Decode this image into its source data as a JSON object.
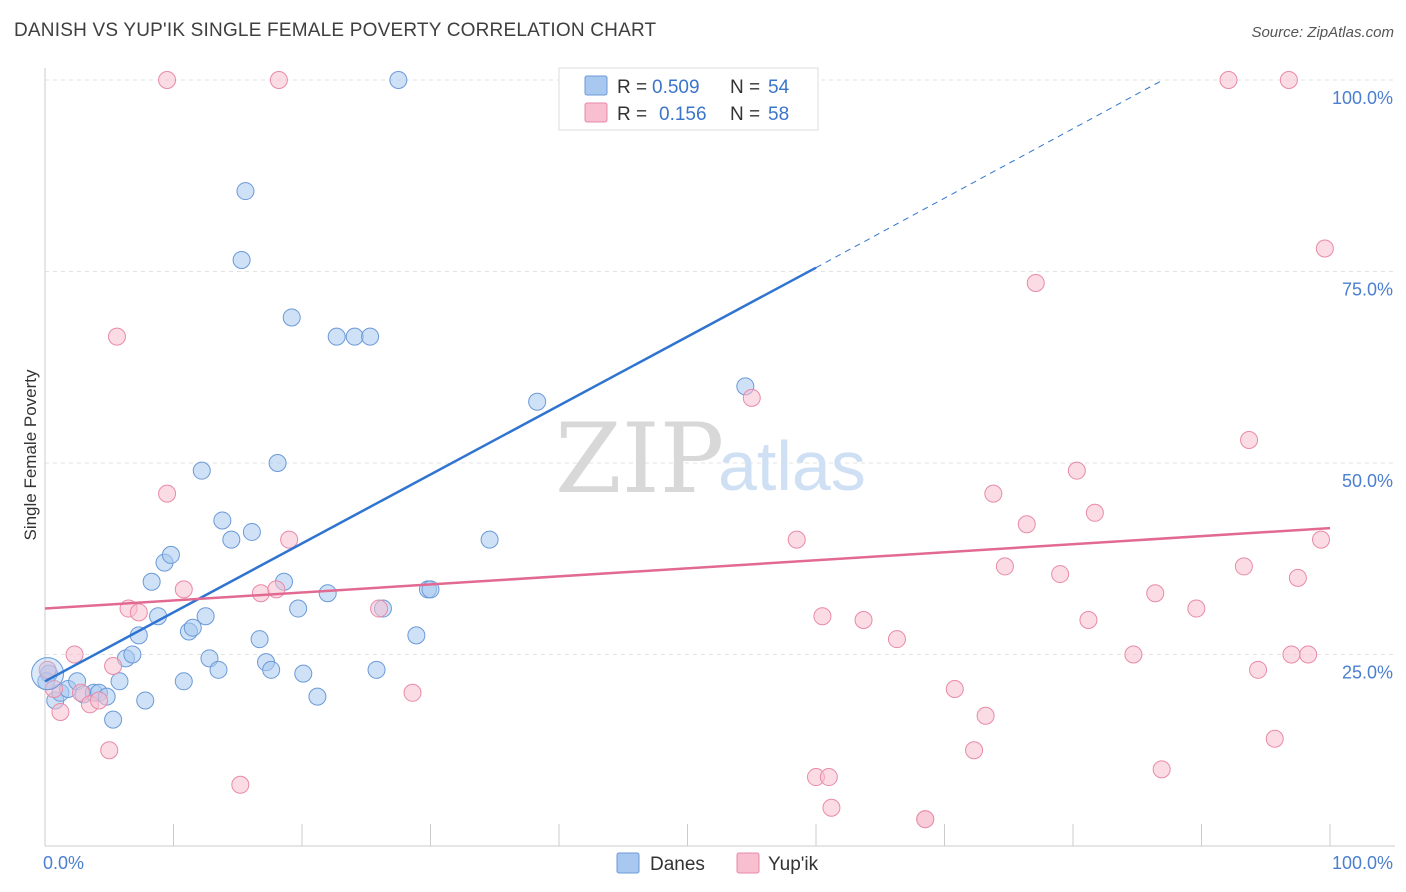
{
  "title": "DANISH VS YUP'IK SINGLE FEMALE POVERTY CORRELATION CHART",
  "source": "Source: ZipAtlas.com",
  "watermark": {
    "zip": "ZIP",
    "atlas": "atlas"
  },
  "legend_top": {
    "rows": [
      {
        "r_label": "R =",
        "r_value": "0.509",
        "n_label": "N =",
        "n_value": "54",
        "color": "#a8c8f0",
        "stroke": "#6b9ad8"
      },
      {
        "r_label": "R =",
        "r_value": "0.156",
        "n_label": "N =",
        "n_value": "58",
        "color": "#f7bfd0",
        "stroke": "#e98aa8"
      }
    ]
  },
  "legend_bottom": [
    {
      "label": "Danes",
      "color": "#a8c8f0",
      "stroke": "#6b9ad8"
    },
    {
      "label": "Yup'ik",
      "color": "#f7bfd0",
      "stroke": "#e98aa8"
    }
  ],
  "chart_data": {
    "type": "scatter",
    "title": "DANISH VS YUP'IK SINGLE FEMALE POVERTY CORRELATION CHART",
    "xlabel": "",
    "ylabel": "Single Female Poverty",
    "xlim": [
      0,
      100
    ],
    "ylim": [
      0,
      100
    ],
    "x_tick_labels": [
      "0.0%",
      "100.0%"
    ],
    "y_tick_values": [
      25,
      50,
      75,
      100
    ],
    "y_tick_labels": [
      "25.0%",
      "50.0%",
      "75.0%",
      "100.0%"
    ],
    "grid": true,
    "legend_position": "top-center",
    "series": [
      {
        "name": "Danes",
        "color": "#a8c8f0",
        "stroke": "#6b9ad8",
        "trend_color": "#2f74d0",
        "trend": {
          "x0": 0,
          "y0": 21.5,
          "x1": 60,
          "y1": 75.5,
          "dashed_to_x": 87,
          "dashed_to_y": 100
        },
        "points": [
          [
            0.3,
            22.5
          ],
          [
            0.8,
            19
          ],
          [
            1.2,
            20
          ],
          [
            1.8,
            20.5
          ],
          [
            2.5,
            21.5
          ],
          [
            3,
            19.8
          ],
          [
            3.8,
            20
          ],
          [
            4.2,
            20
          ],
          [
            4.8,
            19.5
          ],
          [
            5.3,
            16.5
          ],
          [
            5.8,
            21.5
          ],
          [
            6.3,
            24.5
          ],
          [
            6.8,
            25
          ],
          [
            7.3,
            27.5
          ],
          [
            7.8,
            19
          ],
          [
            8.3,
            34.5
          ],
          [
            8.8,
            30
          ],
          [
            9.3,
            37
          ],
          [
            9.8,
            38
          ],
          [
            10.8,
            21.5
          ],
          [
            11.2,
            28
          ],
          [
            11.5,
            28.5
          ],
          [
            12.2,
            49
          ],
          [
            12.5,
            30
          ],
          [
            12.8,
            24.5
          ],
          [
            13.5,
            23
          ],
          [
            13.8,
            42.5
          ],
          [
            14.5,
            40
          ],
          [
            15.3,
            76.5
          ],
          [
            15.6,
            85.5
          ],
          [
            16.1,
            41
          ],
          [
            16.7,
            27
          ],
          [
            17.2,
            24
          ],
          [
            17.6,
            23
          ],
          [
            18.1,
            50
          ],
          [
            18.6,
            34.5
          ],
          [
            19.2,
            69
          ],
          [
            19.7,
            31
          ],
          [
            20.1,
            22.5
          ],
          [
            21.2,
            19.5
          ],
          [
            22,
            33
          ],
          [
            22.7,
            66.5
          ],
          [
            24.1,
            66.5
          ],
          [
            25.3,
            66.5
          ],
          [
            25.8,
            23
          ],
          [
            26.3,
            31
          ],
          [
            27.5,
            100
          ],
          [
            28.9,
            27.5
          ],
          [
            29.8,
            33.5
          ],
          [
            30,
            33.5
          ],
          [
            34.6,
            40
          ],
          [
            38.3,
            58
          ],
          [
            54.5,
            60
          ],
          [
            0.1,
            21.5
          ]
        ]
      },
      {
        "name": "Yup'ik",
        "color": "#f7bfd0",
        "stroke": "#e98aa8",
        "trend_color": "#e26a92",
        "trend": {
          "x0": 0,
          "y0": 31,
          "x1": 100,
          "y1": 41.5
        },
        "points": [
          [
            0.2,
            23
          ],
          [
            0.7,
            20.5
          ],
          [
            1.2,
            17.5
          ],
          [
            2.3,
            25
          ],
          [
            2.8,
            20
          ],
          [
            3.5,
            18.5
          ],
          [
            4.2,
            19
          ],
          [
            5,
            12.5
          ],
          [
            5.3,
            23.5
          ],
          [
            5.6,
            66.5
          ],
          [
            6.5,
            31
          ],
          [
            7.3,
            30.5
          ],
          [
            9.5,
            46
          ],
          [
            9.5,
            100
          ],
          [
            10.8,
            33.5
          ],
          [
            15.2,
            8
          ],
          [
            16.8,
            33
          ],
          [
            18,
            33.5
          ],
          [
            18.2,
            100
          ],
          [
            19,
            40
          ],
          [
            26,
            31
          ],
          [
            28.6,
            20
          ],
          [
            55,
            58.5
          ],
          [
            58.5,
            40
          ],
          [
            60,
            9
          ],
          [
            60.5,
            30
          ],
          [
            61.2,
            5
          ],
          [
            63.7,
            29.5
          ],
          [
            66.3,
            27
          ],
          [
            68.5,
            3.5
          ],
          [
            70.8,
            20.5
          ],
          [
            72.3,
            12.5
          ],
          [
            73.2,
            17
          ],
          [
            73.8,
            46
          ],
          [
            74.7,
            36.5
          ],
          [
            76.4,
            42
          ],
          [
            77.1,
            73.5
          ],
          [
            79,
            35.5
          ],
          [
            80.3,
            49
          ],
          [
            81.2,
            29.5
          ],
          [
            81.7,
            43.5
          ],
          [
            84.7,
            25
          ],
          [
            86.4,
            33
          ],
          [
            86.9,
            10
          ],
          [
            89.6,
            31
          ],
          [
            92.1,
            100
          ],
          [
            93.3,
            36.5
          ],
          [
            93.7,
            53
          ],
          [
            94.4,
            23
          ],
          [
            95.7,
            14
          ],
          [
            96.8,
            100
          ],
          [
            97.5,
            35
          ],
          [
            98.3,
            25
          ],
          [
            99.3,
            40
          ],
          [
            99.6,
            78
          ],
          [
            97,
            25
          ],
          [
            68.5,
            3.5
          ],
          [
            61,
            9
          ]
        ]
      }
    ]
  }
}
